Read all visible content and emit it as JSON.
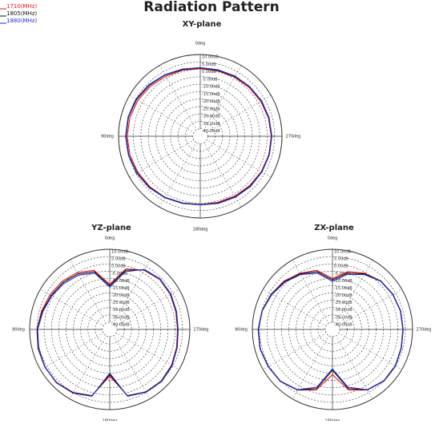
{
  "title": "Radiation Pattern",
  "chart_data": [
    {
      "type": "polar",
      "title": "XY-plane",
      "theta": [
        0,
        15,
        30,
        45,
        60,
        75,
        90,
        105,
        120,
        135,
        150,
        165,
        180,
        195,
        210,
        225,
        240,
        255,
        270,
        285,
        300,
        315,
        330,
        345
      ],
      "theta_zero": "top",
      "theta_direction": "counterclockwise",
      "rlim": [
        -45,
        10
      ],
      "rticks": [
        {
          "value": 10,
          "label": "10.00dB"
        },
        {
          "value": 5,
          "label": "5.00dB"
        },
        {
          "value": 0,
          "label": "0.00dB"
        },
        {
          "value": -5,
          "label": "-5.00dB"
        },
        {
          "value": -10,
          "label": "-10.00dB"
        },
        {
          "value": -15,
          "label": "-15.00dB"
        },
        {
          "value": -20,
          "label": "-20.00dB"
        },
        {
          "value": -25,
          "label": "-25.00dB"
        },
        {
          "value": -30,
          "label": "-30.00dB"
        },
        {
          "value": -35,
          "label": "-35.00dB"
        },
        {
          "value": -40,
          "label": "-40.00dB"
        }
      ],
      "thetaticks": [
        {
          "value": 0,
          "label": "0deg"
        },
        {
          "value": 90,
          "label": "90deg"
        },
        {
          "value": 180,
          "label": "180deg"
        },
        {
          "value": 270,
          "label": "270deg"
        }
      ],
      "grid": true,
      "series": [
        {
          "name": "1710(MHz)",
          "color": "#e8141c",
          "values": [
            0.5,
            1,
            1.5,
            2.5,
            3.5,
            4,
            4.2,
            4,
            3.5,
            3,
            2.5,
            1.5,
            1,
            1,
            1.5,
            2,
            2.5,
            2.8,
            2.8,
            2.5,
            2,
            1.5,
            1,
            0.5
          ]
        },
        {
          "name": "1805(MHz)",
          "color": "#111111",
          "values": [
            1,
            1.5,
            2.5,
            3.5,
            4.5,
            5,
            5,
            4.8,
            4.2,
            3.5,
            2.5,
            1.5,
            1,
            1.5,
            2,
            2.5,
            2.8,
            3,
            3,
            2.8,
            2.5,
            2,
            1.5,
            1
          ]
        },
        {
          "name": "1880(MHz)",
          "color": "#1f2fd0",
          "values": [
            1.2,
            1.8,
            2.8,
            4,
            5,
            5.3,
            5.3,
            5,
            4.5,
            3.8,
            2.8,
            1.8,
            1.2,
            1.8,
            2.3,
            2.8,
            3,
            3.2,
            3.2,
            3,
            2.7,
            2.2,
            1.8,
            1.3
          ]
        }
      ]
    },
    {
      "type": "polar",
      "title": "YZ-plane",
      "theta": [
        0,
        15,
        30,
        45,
        60,
        75,
        90,
        105,
        120,
        135,
        150,
        165,
        180,
        195,
        210,
        225,
        240,
        255,
        270,
        285,
        300,
        315,
        330,
        345
      ],
      "theta_zero": "top",
      "theta_direction": "counterclockwise",
      "rlim": [
        -45,
        10
      ],
      "rticks": [
        {
          "value": 10,
          "label": "10.00dB"
        },
        {
          "value": 5,
          "label": "5.00dB"
        },
        {
          "value": 0,
          "label": "0.00dB"
        },
        {
          "value": -5,
          "label": "-5.00dB"
        },
        {
          "value": -10,
          "label": "-10.00dB"
        },
        {
          "value": -15,
          "label": "-15.00dB"
        },
        {
          "value": -20,
          "label": "-20.00dB"
        },
        {
          "value": -25,
          "label": "-25.00dB"
        },
        {
          "value": -30,
          "label": "-30.00dB"
        },
        {
          "value": -35,
          "label": "-35.00dB"
        },
        {
          "value": -40,
          "label": "-40.00dB"
        }
      ],
      "thetaticks": [
        {
          "value": 0,
          "label": "0deg"
        },
        {
          "value": 90,
          "label": "90deg"
        },
        {
          "value": 180,
          "label": "180deg"
        },
        {
          "value": 270,
          "label": "270deg"
        }
      ],
      "grid": true,
      "series": [
        {
          "name": "1710(MHz)",
          "color": "#e8141c",
          "values": [
            -14,
            -3,
            0,
            1.5,
            2.5,
            3.5,
            5,
            6,
            6.5,
            6.5,
            5,
            2,
            -13,
            2,
            4.5,
            5,
            4,
            2.5,
            1.5,
            2,
            3,
            3.5,
            2,
            -2
          ]
        },
        {
          "name": "1805(MHz)",
          "color": "#111111",
          "values": [
            -15,
            -4,
            -1,
            0.5,
            1.5,
            3,
            4.8,
            5.8,
            6.5,
            6.8,
            5.2,
            2.2,
            -14,
            2.2,
            4.6,
            5.2,
            4.2,
            2.8,
            1.8,
            2.2,
            3.2,
            3.8,
            2.2,
            -3
          ]
        },
        {
          "name": "1880(MHz)",
          "color": "#1f2fd0",
          "values": [
            -16,
            -5,
            -2,
            -0.5,
            1,
            2.5,
            4.5,
            5.5,
            6.3,
            6.8,
            5.5,
            2.5,
            -15,
            2.5,
            4.8,
            5.5,
            4.5,
            3,
            2,
            2.5,
            3.5,
            4,
            2.5,
            -4
          ]
        }
      ]
    },
    {
      "type": "polar",
      "title": "ZX-plane",
      "theta": [
        0,
        15,
        30,
        45,
        60,
        75,
        90,
        105,
        120,
        135,
        150,
        165,
        180,
        195,
        210,
        225,
        240,
        255,
        270,
        285,
        300,
        315,
        330,
        345
      ],
      "theta_zero": "top",
      "theta_direction": "counterclockwise",
      "rlim": [
        -45,
        10
      ],
      "rticks": [
        {
          "value": 10,
          "label": "10.00dB"
        },
        {
          "value": 5,
          "label": "5.00dB"
        },
        {
          "value": 0,
          "label": "0.00dB"
        },
        {
          "value": -5,
          "label": "-5.00dB"
        },
        {
          "value": -10,
          "label": "-10.00dB"
        },
        {
          "value": -15,
          "label": "-15.00dB"
        },
        {
          "value": -20,
          "label": "-20.00dB"
        },
        {
          "value": -25,
          "label": "-25.00dB"
        },
        {
          "value": -30,
          "label": "-30.00dB"
        },
        {
          "value": -35,
          "label": "-35.00dB"
        },
        {
          "value": -40,
          "label": "-40.00dB"
        }
      ],
      "thetaticks": [
        {
          "value": 0,
          "label": "0deg"
        },
        {
          "value": 90,
          "label": "90deg"
        },
        {
          "value": 180,
          "label": "180deg"
        },
        {
          "value": 270,
          "label": "270deg"
        }
      ],
      "grid": true,
      "series": [
        {
          "name": "1710(MHz)",
          "color": "#e8141c",
          "values": [
            -10,
            -3,
            -0.5,
            2,
            3.5,
            5,
            6,
            6.5,
            6,
            5.5,
            3,
            -2,
            -14,
            -2,
            3,
            5,
            5,
            4,
            3.5,
            3.5,
            3,
            2,
            -0.5,
            -4
          ]
        },
        {
          "name": "1805(MHz)",
          "color": "#111111",
          "values": [
            -11,
            -4,
            -1,
            1.5,
            3.5,
            5,
            6,
            6.5,
            6,
            5.5,
            3,
            -3,
            -17,
            -3,
            3,
            5,
            5,
            4,
            3.5,
            3.5,
            3,
            2,
            -1,
            -5
          ]
        },
        {
          "name": "1880(MHz)",
          "color": "#1f2fd0",
          "values": [
            -12,
            -5,
            -1.5,
            1,
            3,
            4.8,
            5.8,
            6.3,
            5.8,
            5.3,
            2.8,
            -4,
            -18,
            -4,
            2.8,
            4.8,
            4.8,
            3.8,
            3.3,
            3.3,
            2.8,
            1.8,
            -1.5,
            -6
          ]
        }
      ]
    }
  ]
}
